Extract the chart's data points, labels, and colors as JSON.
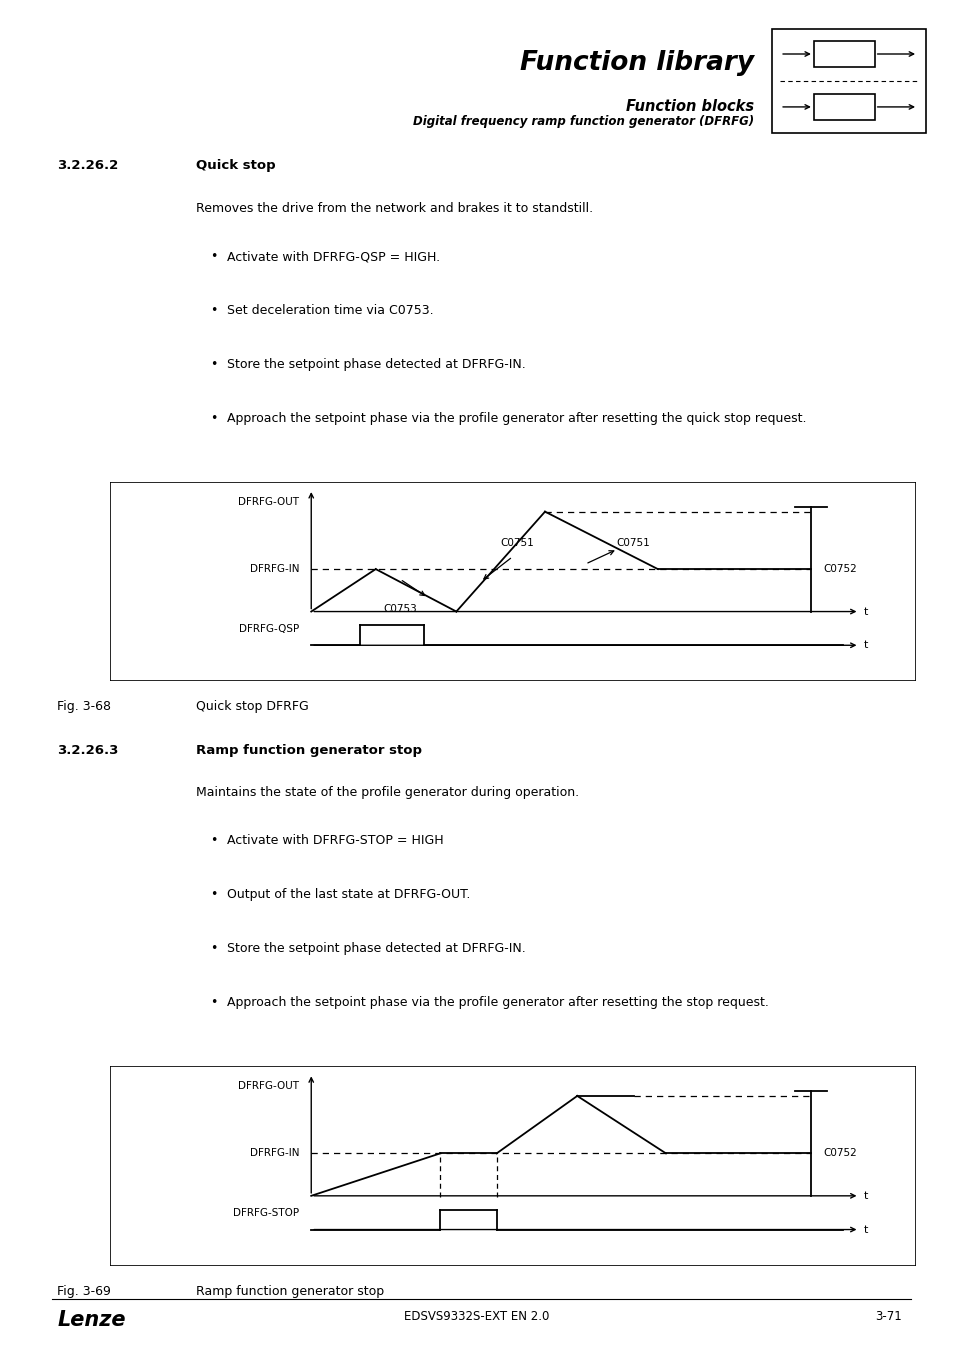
{
  "page_bg": "#ffffff",
  "header_bg": "#d8d8d8",
  "title_text": "Function library",
  "subtitle1": "Function blocks",
  "subtitle2": "Digital frequency ramp function generator (DFRFG)",
  "section1_num": "3.2.26.2",
  "section1_title": "Quick stop",
  "section1_body": "Removes the drive from the network and brakes it to standstill.",
  "section1_bullets": [
    "Activate with DFRFG-QSP = HIGH.",
    "Set deceleration time via C0753.",
    "Store the setpoint phase detected at DFRFG-IN.",
    "Approach the setpoint phase via the profile generator after resetting the quick stop request."
  ],
  "fig1_caption_num": "Fig. 3-68",
  "fig1_caption": "Quick stop DFRFG",
  "section2_num": "3.2.26.3",
  "section2_title": "Ramp function generator stop",
  "section2_body": "Maintains the state of the profile generator during operation.",
  "section2_bullets": [
    "Activate with DFRFG-STOP = HIGH",
    "Output of the last state at DFRFG-OUT.",
    "Store the setpoint phase detected at DFRFG-IN.",
    "Approach the setpoint phase via the profile generator after resetting the stop request."
  ],
  "fig2_caption_num": "Fig. 3-69",
  "fig2_caption": "Ramp function generator stop",
  "footer_left": "Lenze",
  "footer_center": "EDSVS9332S-EXT EN 2.0",
  "footer_right": "3-71"
}
